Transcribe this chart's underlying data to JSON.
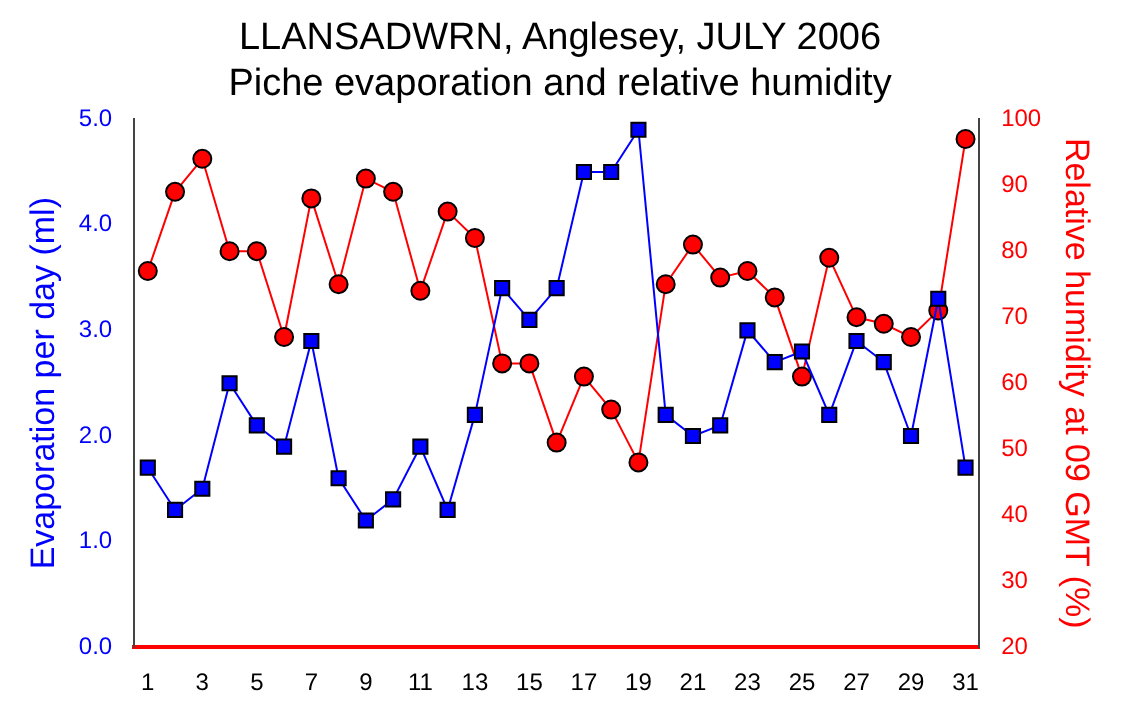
{
  "chart_data": {
    "type": "line",
    "title": [
      "LLANSADWRN, Anglesey, JULY 2006",
      "Piche evaporation and relative humidity"
    ],
    "ylabel": "Evaporation per day (ml)",
    "y2label": "Relative humidity at 09 GMT (%)",
    "x": [
      1,
      2,
      3,
      4,
      5,
      6,
      7,
      8,
      9,
      10,
      11,
      12,
      13,
      14,
      15,
      16,
      17,
      18,
      19,
      20,
      21,
      22,
      23,
      24,
      25,
      26,
      27,
      28,
      29,
      30,
      31
    ],
    "xlim": [
      0.5,
      31.5
    ],
    "xticks": [
      1,
      3,
      5,
      7,
      9,
      11,
      13,
      15,
      17,
      19,
      21,
      23,
      25,
      27,
      29,
      31
    ],
    "ylim": [
      0,
      5
    ],
    "yticks": [
      {
        "value": 0,
        "label": "0.0"
      },
      {
        "value": 1,
        "label": "1.0"
      },
      {
        "value": 2,
        "label": "2.0"
      },
      {
        "value": 3,
        "label": "3.0"
      },
      {
        "value": 4,
        "label": "4.0"
      },
      {
        "value": 5,
        "label": "5.0"
      }
    ],
    "y2lim": [
      20,
      100
    ],
    "y2ticks": [
      20,
      30,
      40,
      50,
      60,
      70,
      80,
      90,
      100
    ],
    "grid": false,
    "legend": false,
    "series": [
      {
        "color": "#0000ff",
        "marker": "square",
        "values": [
          1.7,
          1.3,
          1.5,
          2.5,
          2.1,
          1.9,
          2.9,
          1.6,
          1.2,
          1.4,
          1.9,
          1.3,
          2.2,
          3.4,
          3.1,
          3.4,
          4.5,
          4.5,
          4.9,
          2.2,
          2.0,
          2.1,
          3.0,
          2.7,
          2.8,
          2.2,
          2.9,
          2.7,
          2.0,
          3.3,
          1.7
        ]
      },
      {
        "color": "#ff0000",
        "marker": "circle",
        "axis": "y2",
        "values": [
          77,
          89,
          94,
          80,
          80,
          67,
          88,
          75,
          91,
          89,
          74,
          86,
          82,
          63,
          63,
          51,
          61,
          56,
          48,
          75,
          81,
          76,
          77,
          73,
          61,
          79,
          70,
          69,
          67,
          71,
          97
        ]
      }
    ]
  }
}
